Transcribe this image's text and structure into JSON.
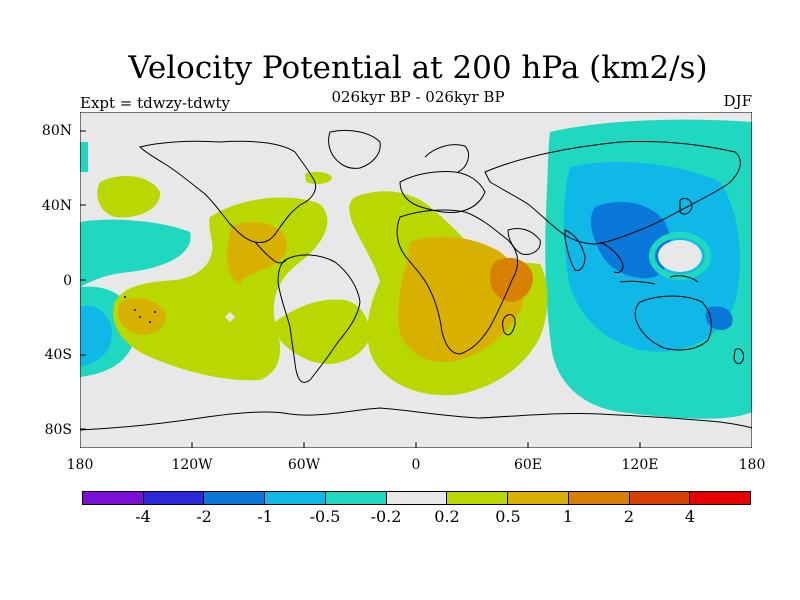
{
  "title": "Velocity Potential at 200 hPa (km2/s)",
  "subtitle": "026kyr BP - 026kyr BP",
  "expt": "Expt = tdwzy-tdwty",
  "season": "DJF",
  "lat_labels": [
    "80N",
    "40N",
    "0",
    "40S",
    "80S"
  ],
  "lon_labels": [
    "180",
    "120W",
    "60W",
    "0",
    "60E",
    "120E",
    "180"
  ],
  "colorbar": {
    "levels": [
      "-4",
      "-2",
      "-1",
      "-0.5",
      "-0.2",
      "0.2",
      "0.5",
      "1",
      "2",
      "4"
    ],
    "colors": [
      "#7a10d8",
      "#2a28d8",
      "#0a78d8",
      "#10b8e8",
      "#20d8c0",
      "#e8e8e8",
      "#b8d800",
      "#d8b000",
      "#d88000",
      "#d84000",
      "#e80000"
    ]
  },
  "map": {
    "projection": "cylindrical equidistant",
    "lon_range": [
      -180,
      180
    ],
    "lat_range": [
      -90,
      90
    ],
    "colors": {
      "neutral": "#e8e8e8",
      "pos_weak": "#b8d800",
      "pos_mid": "#d8b000",
      "pos_strong": "#d88000",
      "neg_weak": "#20d8c0",
      "neg_mid": "#10b8e8",
      "neg_strong": "#0a78d8"
    }
  }
}
